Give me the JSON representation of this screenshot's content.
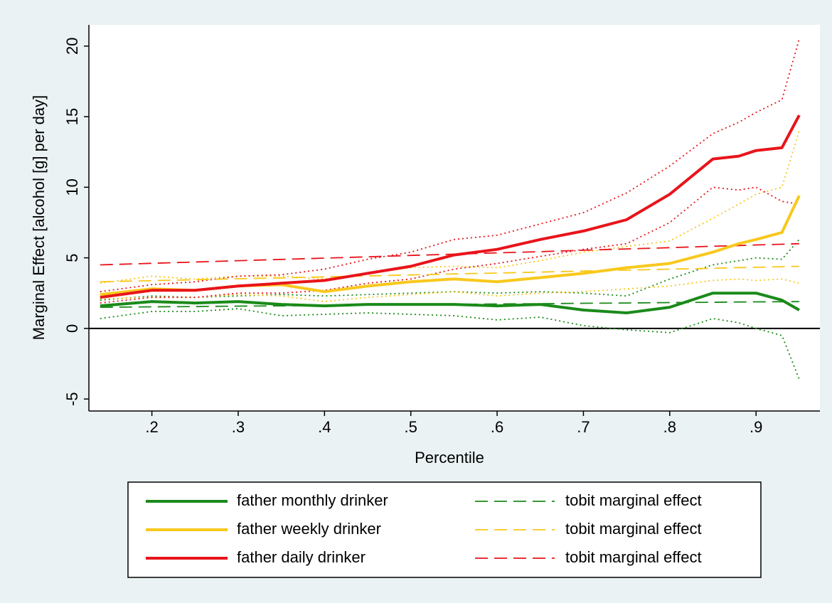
{
  "chart_data": {
    "type": "line",
    "xlabel": "Percentile",
    "ylabel": "Marginal Effect [alcohol [g] per day]",
    "x": [
      0.14,
      0.2,
      0.25,
      0.3,
      0.35,
      0.4,
      0.45,
      0.5,
      0.55,
      0.6,
      0.65,
      0.7,
      0.75,
      0.8,
      0.85,
      0.88,
      0.9,
      0.93,
      0.95
    ],
    "xlim": [
      0.127,
      0.974
    ],
    "xticks": [
      {
        "value": 0.2,
        "label": ".2"
      },
      {
        "value": 0.3,
        "label": ".3"
      },
      {
        "value": 0.4,
        "label": ".4"
      },
      {
        "value": 0.5,
        "label": ".5"
      },
      {
        "value": 0.6,
        "label": ".6"
      },
      {
        "value": 0.7,
        "label": ".7"
      },
      {
        "value": 0.8,
        "label": ".8"
      },
      {
        "value": 0.9,
        "label": ".9"
      }
    ],
    "ylim": [
      -5.85,
      21.5
    ],
    "yticks": [
      -5,
      0,
      5,
      10,
      15,
      20
    ],
    "yline": 0,
    "series": [
      {
        "name": "father monthly drinker",
        "color": "#1a8a1a",
        "dash": "solid",
        "values": [
          1.6,
          1.9,
          1.8,
          1.9,
          1.7,
          1.6,
          1.7,
          1.7,
          1.7,
          1.6,
          1.7,
          1.3,
          1.1,
          1.5,
          2.5,
          2.5,
          2.5,
          2.0,
          1.3
        ]
      },
      {
        "name": "father weekly drinker",
        "color": "#f8c81c",
        "dash": "solid",
        "values": [
          2.4,
          2.8,
          2.7,
          3.0,
          3.1,
          2.6,
          3.0,
          3.3,
          3.5,
          3.3,
          3.6,
          3.9,
          4.3,
          4.6,
          5.4,
          6.0,
          6.3,
          6.8,
          9.4
        ]
      },
      {
        "name": "father daily drinker",
        "color": "#e8141b",
        "dash": "solid",
        "values": [
          2.2,
          2.7,
          2.7,
          3.0,
          3.2,
          3.4,
          3.9,
          4.4,
          5.2,
          5.6,
          6.3,
          6.9,
          7.7,
          9.5,
          12.0,
          12.2,
          12.6,
          12.8,
          15.1
        ]
      },
      {
        "name": "tobit marginal effect",
        "color": "#1a8a1a",
        "dash": "dash",
        "values": [
          1.5,
          1.53,
          1.55,
          1.58,
          1.6,
          1.63,
          1.65,
          1.68,
          1.7,
          1.73,
          1.75,
          1.78,
          1.8,
          1.83,
          1.85,
          1.87,
          1.88,
          1.89,
          1.9
        ]
      },
      {
        "name": "tobit marginal effect",
        "color": "#f8c81c",
        "dash": "dash",
        "values": [
          3.3,
          3.38,
          3.45,
          3.52,
          3.58,
          3.65,
          3.72,
          3.79,
          3.86,
          3.92,
          3.99,
          4.06,
          4.13,
          4.2,
          4.26,
          4.31,
          4.33,
          4.37,
          4.4
        ]
      },
      {
        "name": "tobit marginal effect",
        "color": "#e8141b",
        "dash": "dash",
        "values": [
          4.5,
          4.61,
          4.7,
          4.8,
          4.89,
          4.98,
          5.07,
          5.17,
          5.26,
          5.35,
          5.44,
          5.54,
          5.63,
          5.72,
          5.82,
          5.87,
          5.91,
          5.96,
          6.0
        ]
      },
      {
        "color": "#1a8a1a",
        "dash": "dot",
        "values": [
          2.0,
          2.3,
          2.2,
          2.3,
          2.4,
          2.3,
          2.4,
          2.5,
          2.6,
          2.5,
          2.6,
          2.5,
          2.3,
          3.5,
          4.5,
          4.8,
          5.0,
          4.9,
          6.3
        ]
      },
      {
        "color": "#1a8a1a",
        "dash": "dot",
        "values": [
          0.7,
          1.2,
          1.2,
          1.4,
          0.9,
          1.0,
          1.1,
          1.0,
          0.9,
          0.6,
          0.8,
          0.2,
          -0.1,
          -0.3,
          0.7,
          0.4,
          0.0,
          -0.5,
          -3.6
        ]
      },
      {
        "color": "#f8c81c",
        "dash": "dot",
        "values": [
          3.2,
          3.7,
          3.5,
          3.7,
          3.7,
          3.5,
          3.9,
          4.3,
          4.4,
          4.3,
          4.8,
          5.4,
          5.8,
          6.2,
          7.8,
          8.8,
          9.5,
          10.0,
          14.0
        ]
      },
      {
        "color": "#f8c81c",
        "dash": "dot",
        "values": [
          2.1,
          2.2,
          2.2,
          2.4,
          2.3,
          1.9,
          2.2,
          2.4,
          2.6,
          2.3,
          2.5,
          2.6,
          2.8,
          3.0,
          3.4,
          3.5,
          3.4,
          3.5,
          3.2
        ]
      },
      {
        "color": "#e8141b",
        "dash": "dot",
        "values": [
          2.6,
          3.1,
          3.3,
          3.7,
          3.8,
          4.2,
          4.9,
          5.4,
          6.3,
          6.6,
          7.4,
          8.2,
          9.6,
          11.5,
          13.8,
          14.6,
          15.3,
          16.2,
          20.5
        ]
      },
      {
        "color": "#e8141b",
        "dash": "dot",
        "values": [
          1.8,
          2.2,
          2.2,
          2.5,
          2.5,
          2.7,
          3.2,
          3.5,
          4.2,
          4.6,
          5.1,
          5.6,
          6.0,
          7.5,
          10.0,
          9.8,
          10.0,
          9.0,
          8.8
        ]
      }
    ]
  }
}
